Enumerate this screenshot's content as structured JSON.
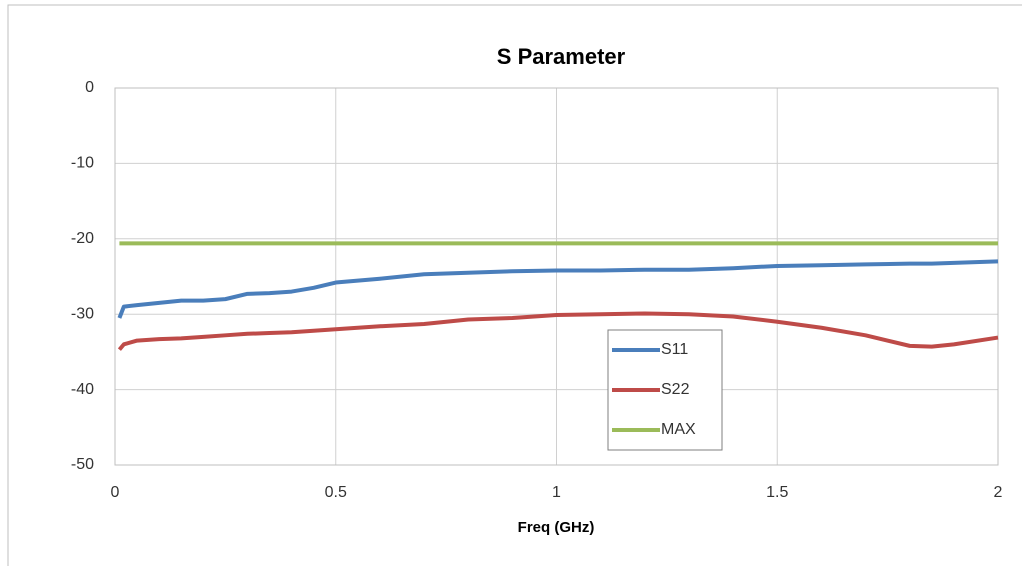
{
  "chart_data": {
    "type": "line",
    "title": "S Parameter",
    "x_label": "Freq (GHz)",
    "x": [
      0.01,
      0.02,
      0.05,
      0.1,
      0.15,
      0.2,
      0.25,
      0.3,
      0.35,
      0.4,
      0.45,
      0.5,
      0.6,
      0.7,
      0.8,
      0.9,
      1.0,
      1.1,
      1.2,
      1.3,
      1.4,
      1.5,
      1.6,
      1.7,
      1.8,
      1.85,
      1.9,
      2.0
    ],
    "series": [
      {
        "name": "S11",
        "color": "#4a7ebb",
        "values": [
          -30.5,
          -29,
          -28.8,
          -28.5,
          -28.2,
          -28.2,
          -28,
          -27.3,
          -27.2,
          -27,
          -26.5,
          -25.8,
          -25.3,
          -24.7,
          -24.5,
          -24.3,
          -24.2,
          -24.2,
          -24.1,
          -24.1,
          -23.9,
          -23.6,
          -23.5,
          -23.4,
          -23.3,
          -23.3,
          -23.2,
          -23
        ]
      },
      {
        "name": "S22",
        "color": "#be4b48",
        "values": [
          -34.7,
          -34,
          -33.5,
          -33.3,
          -33.2,
          -33,
          -32.8,
          -32.6,
          -32.5,
          -32.4,
          -32.2,
          -32,
          -31.6,
          -31.3,
          -30.7,
          -30.5,
          -30.1,
          -30,
          -29.9,
          -30,
          -30.3,
          -31,
          -31.8,
          -32.8,
          -34.2,
          -34.3,
          -34,
          -33.1
        ]
      },
      {
        "name": "MAX",
        "color": "#9bbb59",
        "values": [
          -20.6,
          -20.6,
          -20.6,
          -20.6,
          -20.6,
          -20.6,
          -20.6,
          -20.6,
          -20.6,
          -20.6,
          -20.6,
          -20.6,
          -20.6,
          -20.6,
          -20.6,
          -20.6,
          -20.6,
          -20.6,
          -20.6,
          -20.6,
          -20.6,
          -20.6,
          -20.6,
          -20.6,
          -20.6,
          -20.6,
          -20.6,
          -20.6
        ]
      }
    ],
    "xlim": [
      0,
      2
    ],
    "xticks": [
      0,
      0.5,
      1,
      1.5,
      2
    ],
    "ylim": [
      -50,
      0
    ],
    "yticks": [
      0,
      -10,
      -20,
      -30,
      -40,
      -50
    ],
    "grid": true,
    "legend": "lower-center"
  }
}
